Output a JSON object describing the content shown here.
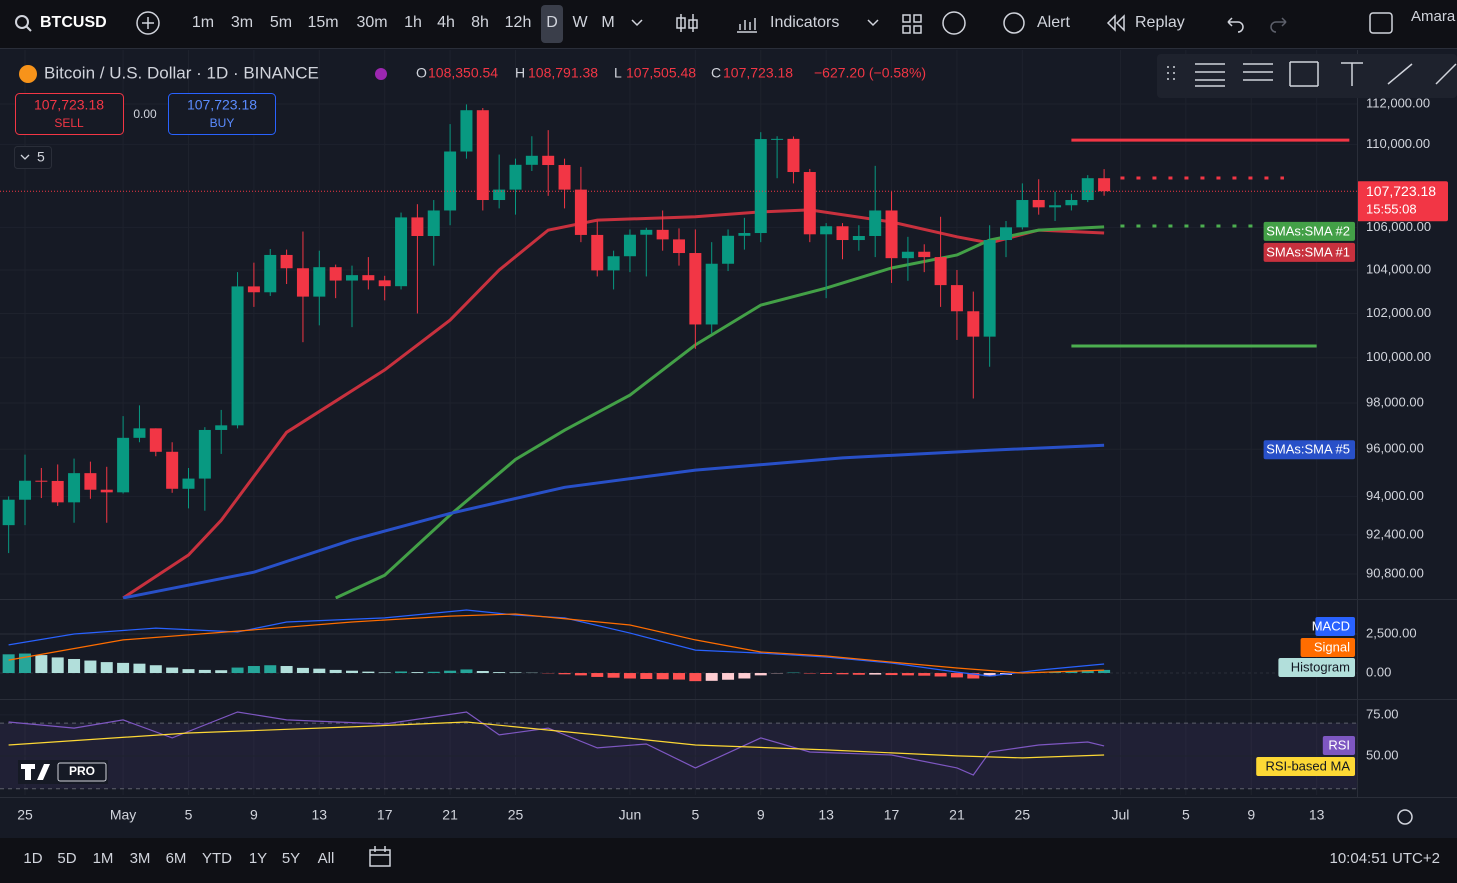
{
  "toolbar": {
    "symbol": "BTCUSD",
    "intervals": [
      "1m",
      "3m",
      "5m",
      "15m",
      "30m",
      "1h",
      "4h",
      "8h",
      "12h",
      "D",
      "W",
      "M"
    ],
    "indicators": "Indicators",
    "alert": "Alert",
    "replay": "Replay",
    "user": "Amara"
  },
  "legend": {
    "o_label": "O",
    "o": "108,350.54",
    "h_label": "H",
    "h": "108,791.38",
    "l_label": "L",
    "l": "107,505.48",
    "c_label": "C",
    "c": "107,723.18",
    "change": "−627.20 (−0.58%)"
  },
  "trade": {
    "sell_price": "107,723.18",
    "sell": "SELL",
    "spread": "0.00",
    "buy_price": "107,723.18",
    "buy": "BUY",
    "indicator_count": "5"
  },
  "price_label": {
    "price": "107,723.18",
    "countdown": "15:55:08"
  },
  "logo": "PRO",
  "bottom_bar": {
    "ranges": [
      "1D",
      "5D",
      "1M",
      "3M",
      "6M",
      "YTD",
      "1Y",
      "5Y",
      "All"
    ],
    "time": "10:04:51 UTC+2"
  },
  "chart_data": [
    {
      "type": "candlestick",
      "title": "Bitcoin / U.S. Dollar · 1D · BINANCE",
      "log_scale": true,
      "grid": true,
      "up_color": "#089981",
      "down_color": "#f23645",
      "x": [
        "Apr 24",
        "Apr 25",
        "Apr 26",
        "Apr 27",
        "Apr 28",
        "Apr 29",
        "Apr 30",
        "May 1",
        "May 2",
        "May 3",
        "May 4",
        "May 5",
        "May 6",
        "May 7",
        "May 8",
        "May 9",
        "May 10",
        "May 11",
        "May 12",
        "May 13",
        "May 14",
        "May 15",
        "May 16",
        "May 17",
        "May 18",
        "May 19",
        "May 20",
        "May 21",
        "May 22",
        "May 23",
        "May 24",
        "May 25",
        "May 26",
        "May 27",
        "May 28",
        "May 29",
        "May 30",
        "May 31",
        "Jun 1",
        "Jun 2",
        "Jun 3",
        "Jun 4",
        "Jun 5",
        "Jun 6",
        "Jun 7",
        "Jun 8",
        "Jun 9",
        "Jun 10",
        "Jun 11",
        "Jun 12",
        "Jun 13",
        "Jun 14",
        "Jun 15",
        "Jun 16",
        "Jun 17",
        "Jun 18",
        "Jun 19",
        "Jun 20",
        "Jun 21",
        "Jun 22",
        "Jun 23",
        "Jun 24",
        "Jun 25",
        "Jun 26",
        "Jun 27",
        "Jun 28",
        "Jun 29",
        "Jun 30"
      ],
      "open": [
        92800,
        93860,
        94660,
        94650,
        93750,
        94980,
        94280,
        94170,
        96490,
        96900,
        95890,
        94320,
        94750,
        96830,
        97030,
        103240,
        102970,
        104700,
        104080,
        102770,
        104130,
        103510,
        103760,
        103520,
        103250,
        106470,
        105590,
        106800,
        109650,
        111690,
        107300,
        107800,
        109000,
        109440,
        108990,
        107800,
        105640,
        103980,
        104640,
        105650,
        105880,
        105430,
        104790,
        101500,
        104290,
        105600,
        105730,
        110260,
        110270,
        108650,
        105670,
        106050,
        105400,
        105590,
        106800,
        104550,
        104850,
        104600,
        103300,
        102100,
        100950,
        105400,
        106000,
        107300,
        106950,
        107050,
        107300,
        108350.54
      ],
      "high": [
        94000,
        95770,
        95200,
        95350,
        95600,
        95470,
        95250,
        97430,
        97900,
        96900,
        96300,
        95200,
        96950,
        97700,
        103900,
        104340,
        104980,
        104950,
        105800,
        104900,
        104250,
        104200,
        104600,
        103730,
        106700,
        107100,
        107300,
        111000,
        111980,
        111800,
        109500,
        109300,
        110400,
        110700,
        109300,
        108900,
        106300,
        104900,
        105900,
        105980,
        106800,
        105950,
        105900,
        105300,
        105900,
        106450,
        110600,
        110400,
        110390,
        108800,
        106200,
        106200,
        106100,
        108950,
        107700,
        105550,
        105200,
        106500,
        104000,
        103000,
        106100,
        106300,
        108100,
        108300,
        107700,
        107600,
        108500,
        108791.38
      ],
      "low": [
        91650,
        92800,
        93930,
        93600,
        92900,
        93900,
        92900,
        94120,
        96300,
        95700,
        94150,
        93500,
        93400,
        95800,
        96900,
        102300,
        102800,
        103350,
        100700,
        101460,
        102700,
        101380,
        103100,
        102600,
        103100,
        102000,
        104200,
        106100,
        109300,
        106800,
        106900,
        106600,
        108700,
        107500,
        106900,
        105300,
        103700,
        103100,
        103900,
        103700,
        104900,
        104200,
        100400,
        101100,
        103950,
        104950,
        105300,
        108350,
        108100,
        105300,
        102700,
        104500,
        104900,
        104600,
        103400,
        103500,
        103900,
        102300,
        100800,
        98200,
        99600,
        104600,
        105900,
        106600,
        106300,
        106800,
        107200,
        107505.48
      ],
      "close": [
        93860,
        94660,
        94650,
        93750,
        94980,
        94280,
        94170,
        96490,
        96900,
        95890,
        94320,
        94750,
        96830,
        97030,
        103240,
        102970,
        104700,
        104080,
        102770,
        104130,
        103510,
        103760,
        103520,
        103250,
        106470,
        105590,
        106800,
        109650,
        111690,
        107300,
        107800,
        109000,
        109440,
        108990,
        107800,
        105640,
        103980,
        104640,
        105650,
        105880,
        105430,
        104790,
        101500,
        104290,
        105600,
        105730,
        110260,
        110270,
        108650,
        105670,
        106050,
        105400,
        105590,
        106800,
        104550,
        104850,
        104600,
        103300,
        102100,
        100950,
        105400,
        106000,
        107300,
        106950,
        107050,
        107300,
        108350.54,
        107723.18
      ],
      "ylim": [
        89830,
        114734
      ],
      "yticks": [
        {
          "value": 112000,
          "label": "112,000.00"
        },
        {
          "value": 110000,
          "label": "110,000.00"
        },
        {
          "value": 106000,
          "label": "106,000.00"
        },
        {
          "value": 104000,
          "label": "104,000.00"
        },
        {
          "value": 102000,
          "label": "102,000.00"
        },
        {
          "value": 100000,
          "label": "100,000.00"
        },
        {
          "value": 98000,
          "label": "98,000.00"
        },
        {
          "value": 96000,
          "label": "96,000.00"
        },
        {
          "value": 94000,
          "label": "94,000.00"
        },
        {
          "value": 92400,
          "label": "92,400.00"
        },
        {
          "value": 90800,
          "label": "90,800.00"
        }
      ],
      "xticks": [
        {
          "value": "Apr 25",
          "label": "25"
        },
        {
          "value": "May 1",
          "label": "May"
        },
        {
          "value": "May 5",
          "label": "5"
        },
        {
          "value": "May 9",
          "label": "9"
        },
        {
          "value": "May 13",
          "label": "13"
        },
        {
          "value": "May 17",
          "label": "17"
        },
        {
          "value": "May 21",
          "label": "21"
        },
        {
          "value": "May 25",
          "label": "25"
        },
        {
          "value": "Jun 1",
          "label": "Jun"
        },
        {
          "value": "Jun 5",
          "label": "5"
        },
        {
          "value": "Jun 9",
          "label": "9"
        },
        {
          "value": "Jun 13",
          "label": "13"
        },
        {
          "value": "Jun 17",
          "label": "17"
        },
        {
          "value": "Jun 21",
          "label": "21"
        },
        {
          "value": "Jun 25",
          "label": "25"
        },
        {
          "value": "Jul 1",
          "label": "Jul"
        },
        {
          "value": "Jul 5",
          "label": "5"
        },
        {
          "value": "Jul 9",
          "label": "9"
        },
        {
          "value": "Jul 13",
          "label": "13"
        }
      ],
      "series": [
        {
          "name": "SMAs:SMA #1",
          "color": "#c8313e",
          "x": [
            "May 1",
            "May 5",
            "May 7",
            "May 11",
            "May 17",
            "May 21",
            "May 24",
            "May 27",
            "May 30",
            "Jun 5",
            "Jun 9",
            "Jun 12",
            "Jun 17",
            "Jun 21",
            "Jun 23",
            "Jun 26",
            "Jun 30"
          ],
          "values": [
            89830,
            91570,
            93000,
            96730,
            99460,
            101700,
            104000,
            105870,
            106340,
            106500,
            106730,
            106830,
            106250,
            105550,
            105260,
            105870,
            105730
          ]
        },
        {
          "name": "SMAs:SMA #2",
          "color": "#43a047",
          "x": [
            "May 14",
            "May 17",
            "May 21",
            "May 25",
            "May 28",
            "Jun 1",
            "Jun 5",
            "Jun 9",
            "Jun 13",
            "Jun 17",
            "Jun 21",
            "Jun 23",
            "Jun 26",
            "Jun 30"
          ],
          "values": [
            89830,
            90750,
            93220,
            95560,
            96820,
            98350,
            100580,
            102380,
            103160,
            104090,
            104700,
            105400,
            105870,
            106020
          ]
        },
        {
          "name": "SMAs:SMA #5",
          "color": "#2850c8",
          "x": [
            "May 1",
            "May 9",
            "May 15",
            "May 21",
            "May 28",
            "Jun 5",
            "Jun 14",
            "Jun 23",
            "Jun 30"
          ],
          "values": [
            89830,
            90870,
            92190,
            93290,
            94380,
            95110,
            95630,
            95960,
            96170
          ]
        }
      ],
      "drawings": [
        {
          "color": "#f23645",
          "x": [
            "Jun 28",
            "Jul 15"
          ],
          "values": [
            110210,
            110210
          ],
          "dash": false
        },
        {
          "color": "#4caf50",
          "x": [
            "Jun 28",
            "Jul 13"
          ],
          "values": [
            100530,
            100530
          ],
          "dash": false
        },
        {
          "color": "#f23645",
          "x": [
            "Jul 1",
            "Jul 11"
          ],
          "values": [
            108360,
            108360
          ],
          "dash": true
        },
        {
          "color": "#4caf50",
          "x": [
            "Jul 1",
            "Jul 10"
          ],
          "values": [
            106060,
            106060
          ],
          "dash": true
        }
      ]
    },
    {
      "type": "macd",
      "ylim": [
        -1600,
        4680
      ],
      "yticks": [
        {
          "value": 2500,
          "label": "2,500.00"
        },
        {
          "value": 0,
          "label": "0.00"
        }
      ],
      "series": [
        {
          "name": "MACD",
          "color": "#2962ff",
          "x": [
            "Apr 24",
            "Apr 28",
            "May 3",
            "May 8",
            "May 11",
            "May 17",
            "May 22",
            "May 25",
            "May 28",
            "Jun 1",
            "Jun 5",
            "Jun 9",
            "Jun 13",
            "Jun 17",
            "Jun 21",
            "Jun 23",
            "Jun 26",
            "Jun 30"
          ],
          "values": [
            1800,
            2500,
            2880,
            2630,
            3270,
            3530,
            4040,
            3720,
            3530,
            2560,
            1470,
            1280,
            1030,
            640,
            60,
            -190,
            190,
            580
          ]
        },
        {
          "name": "Signal",
          "color": "#ff6d00",
          "x": [
            "Apr 24",
            "May 1",
            "May 8",
            "May 15",
            "May 21",
            "May 25",
            "Jun 1",
            "Jun 5",
            "Jun 9",
            "Jun 13",
            "Jun 17",
            "Jun 21",
            "Jun 25",
            "Jun 30"
          ],
          "values": [
            830,
            2120,
            2690,
            3270,
            3650,
            3780,
            3080,
            2120,
            1350,
            1090,
            700,
            320,
            0,
            190
          ]
        }
      ],
      "histogram": {
        "name": "Histogram",
        "colors": [
          "#26a69a",
          "#b2dfdb",
          "#ff5252",
          "#ffcdd2"
        ],
        "values": [
          1200,
          1250,
          1150,
          1000,
          900,
          800,
          700,
          650,
          600,
          500,
          350,
          250,
          200,
          180,
          350,
          450,
          500,
          450,
          330,
          280,
          200,
          150,
          90,
          40,
          100,
          60,
          80,
          150,
          230,
          130,
          60,
          40,
          20,
          -20,
          -80,
          -150,
          -250,
          -300,
          -350,
          -380,
          -400,
          -420,
          -520,
          -500,
          -430,
          -350,
          -150,
          -20,
          30,
          -30,
          -60,
          -80,
          -110,
          -100,
          -130,
          -150,
          -170,
          -220,
          -280,
          -350,
          -200,
          -120,
          -20,
          40,
          80,
          130,
          180,
          200
        ]
      }
    },
    {
      "type": "rsi",
      "ylim": [
        26.2,
        84.1
      ],
      "band": [
        30,
        70
      ],
      "yticks": [
        {
          "value": 75,
          "label": "75.00"
        },
        {
          "value": 50,
          "label": "50.00"
        }
      ],
      "series": [
        {
          "name": "RSI",
          "color": "#7e57c2",
          "x": [
            "Apr 24",
            "Apr 28",
            "May 1",
            "May 4",
            "May 8",
            "May 11",
            "May 17",
            "May 22",
            "May 24",
            "May 27",
            "May 30",
            "Jun 2",
            "Jun 5",
            "Jun 9",
            "Jun 12",
            "Jun 17",
            "Jun 21",
            "Jun 22",
            "Jun 23",
            "Jun 26",
            "Jun 29",
            "Jun 30"
          ],
          "values": [
            70.7,
            67,
            72,
            61,
            76.8,
            72,
            69.5,
            76.8,
            62.8,
            67,
            54.9,
            57.3,
            42.7,
            61,
            52.4,
            50.6,
            42.7,
            38.4,
            52.4,
            56.7,
            58.5,
            56.1
          ]
        },
        {
          "name": "RSI-based MA",
          "color": "#fdd835",
          "x": [
            "Apr 24",
            "May 5",
            "May 15",
            "May 22",
            "May 30",
            "Jun 5",
            "Jun 13",
            "Jun 21",
            "Jun 25",
            "Jun 30"
          ],
          "values": [
            56.7,
            64,
            67.7,
            70.7,
            62.8,
            56.7,
            53.7,
            50,
            48.8,
            50.6
          ]
        }
      ]
    }
  ]
}
